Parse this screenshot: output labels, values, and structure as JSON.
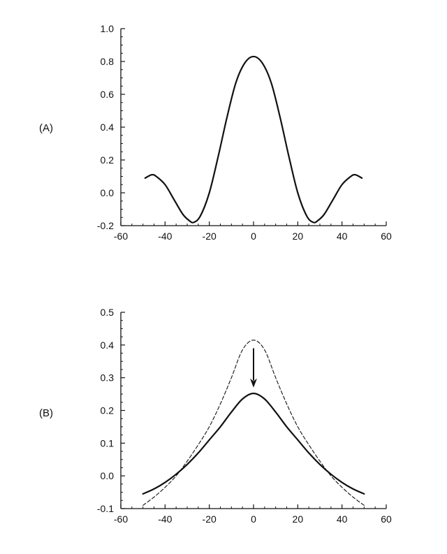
{
  "chart_data": [
    {
      "type": "line",
      "panel_label": "(A)",
      "xlim": [
        -60,
        60
      ],
      "ylim": [
        -0.2,
        1.0
      ],
      "x_ticks": [
        -60,
        -40,
        -20,
        0,
        20,
        40,
        60
      ],
      "y_ticks": [
        -0.2,
        0.0,
        0.2,
        0.4,
        0.6,
        0.8,
        1.0
      ],
      "x_tick_labels": [
        "-60",
        "-40",
        "-20",
        "0",
        "20",
        "40",
        "60"
      ],
      "y_tick_labels": [
        "-0.2",
        "0.0",
        "0.2",
        "0.4",
        "0.6",
        "0.8",
        "1.0"
      ],
      "grid": false,
      "series": [
        {
          "style": "solid",
          "x": [
            -49,
            -46,
            -44,
            -40,
            -36,
            -32,
            -29,
            -27,
            -24,
            -20,
            -16,
            -12,
            -8,
            -4,
            0,
            4,
            8,
            12,
            16,
            20,
            24,
            27,
            29,
            32,
            36,
            40,
            44,
            46,
            49
          ],
          "y": [
            0.09,
            0.11,
            0.1,
            0.05,
            -0.04,
            -0.13,
            -0.17,
            -0.18,
            -0.14,
            0.0,
            0.22,
            0.46,
            0.67,
            0.79,
            0.83,
            0.79,
            0.67,
            0.46,
            0.22,
            0.0,
            -0.14,
            -0.18,
            -0.17,
            -0.13,
            -0.04,
            0.05,
            0.1,
            0.11,
            0.09
          ]
        }
      ]
    },
    {
      "type": "line",
      "panel_label": "(B)",
      "xlim": [
        -60,
        60
      ],
      "ylim": [
        -0.1,
        0.5
      ],
      "x_ticks": [
        -60,
        -40,
        -20,
        0,
        20,
        40,
        60
      ],
      "y_ticks": [
        -0.1,
        0.0,
        0.1,
        0.2,
        0.3,
        0.4,
        0.5
      ],
      "x_tick_labels": [
        "-60",
        "-40",
        "-20",
        "0",
        "20",
        "40",
        "60"
      ],
      "y_tick_labels": [
        "-0.1",
        "0.0",
        "0.1",
        "0.2",
        "0.3",
        "0.4",
        "0.5"
      ],
      "grid": false,
      "annotation": "downward arrow at x = 0 from y = 0.39 to y = 0.27",
      "arrow": {
        "x": 0,
        "y_from": 0.39,
        "y_to": 0.27
      },
      "series": [
        {
          "style": "solid",
          "x": [
            -50,
            -45,
            -40,
            -35,
            -30,
            -25,
            -20,
            -15,
            -10,
            -5,
            0,
            5,
            10,
            15,
            20,
            25,
            30,
            35,
            40,
            45,
            50
          ],
          "y": [
            -0.055,
            -0.04,
            -0.02,
            0.005,
            0.035,
            0.07,
            0.11,
            0.15,
            0.195,
            0.235,
            0.252,
            0.235,
            0.195,
            0.15,
            0.11,
            0.07,
            0.035,
            0.005,
            -0.02,
            -0.04,
            -0.055
          ]
        },
        {
          "style": "dashed",
          "x": [
            -50,
            -45,
            -40,
            -35,
            -30,
            -25,
            -20,
            -15,
            -10,
            -5,
            0,
            5,
            10,
            15,
            20,
            25,
            30,
            35,
            40,
            45,
            50
          ],
          "y": [
            -0.09,
            -0.065,
            -0.035,
            0.0,
            0.045,
            0.095,
            0.15,
            0.22,
            0.3,
            0.385,
            0.415,
            0.385,
            0.3,
            0.22,
            0.15,
            0.095,
            0.045,
            0.0,
            -0.035,
            -0.065,
            -0.09
          ]
        }
      ]
    }
  ]
}
